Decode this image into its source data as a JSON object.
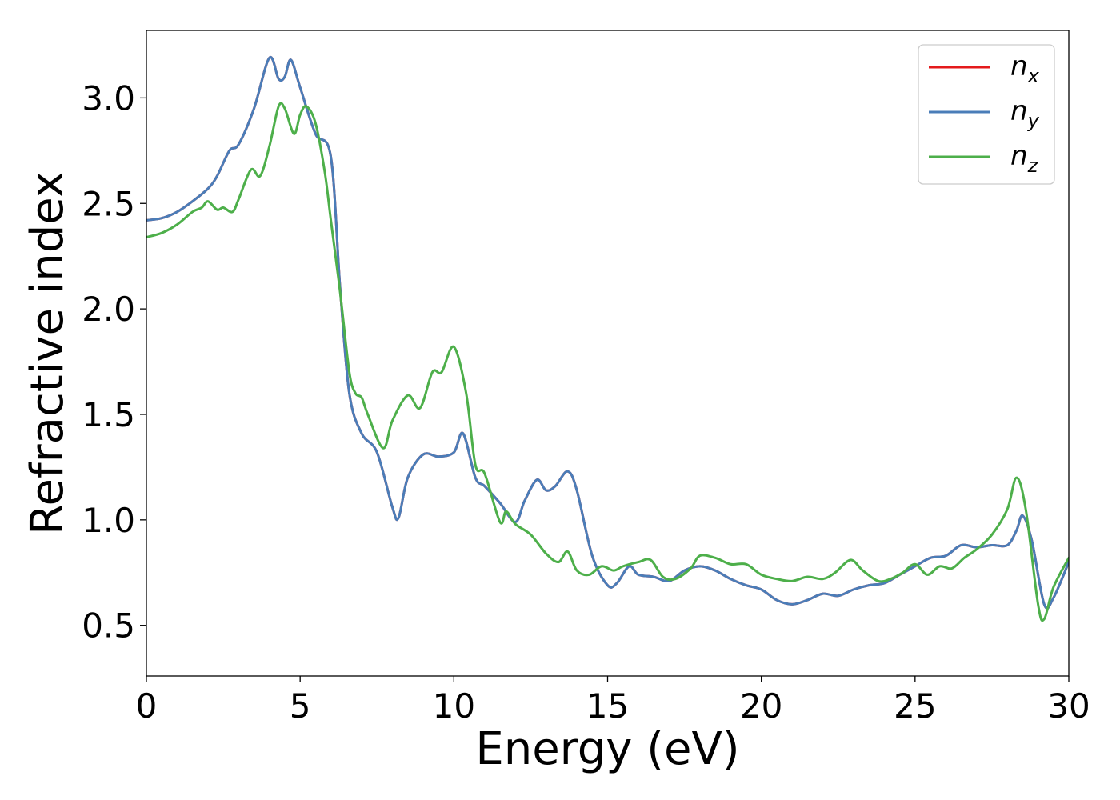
{
  "chart_data": {
    "type": "line",
    "xlabel": "Energy (eV)",
    "ylabel": "Refractive index",
    "xlim": [
      0,
      30
    ],
    "ylim": [
      0.26,
      3.32
    ],
    "xticks": [
      0,
      5,
      10,
      15,
      20,
      25,
      30
    ],
    "xtick_labels": [
      "0",
      "5",
      "10",
      "15",
      "20",
      "25",
      "30"
    ],
    "yticks": [
      0.5,
      1.0,
      1.5,
      2.0,
      2.5,
      3.0
    ],
    "ytick_labels": [
      "0.5",
      "1.0",
      "1.5",
      "2.0",
      "2.5",
      "3.0"
    ],
    "grid": false,
    "legend_position": "top-right",
    "series": [
      {
        "name": "n_x",
        "label_base": "n",
        "label_sub": "x",
        "color": "#e41a1c",
        "x": [
          0,
          0.5,
          1,
          1.5,
          2,
          2.3,
          2.7,
          3,
          3.5,
          4,
          4.3,
          4.5,
          4.7,
          5,
          5.5,
          6,
          6.3,
          6.6,
          7,
          7.5,
          8,
          8.2,
          8.5,
          9,
          9.5,
          10,
          10.3,
          10.7,
          11,
          11.5,
          12,
          12.3,
          12.7,
          13,
          13.3,
          13.7,
          14,
          14.5,
          15,
          15.3,
          15.7,
          16,
          16.5,
          17,
          17.5,
          18,
          18.5,
          19,
          19.5,
          20,
          20.5,
          21,
          21.5,
          22,
          22.5,
          23,
          23.5,
          24,
          24.5,
          25,
          25.5,
          26,
          26.5,
          27,
          27.5,
          28,
          28.3,
          28.5,
          28.8,
          29.2,
          29.5,
          30
        ],
        "y": [
          2.42,
          2.43,
          2.46,
          2.51,
          2.57,
          2.63,
          2.75,
          2.78,
          2.95,
          3.19,
          3.09,
          3.1,
          3.18,
          3.05,
          2.83,
          2.72,
          2.1,
          1.6,
          1.41,
          1.32,
          1.06,
          1.01,
          1.2,
          1.31,
          1.3,
          1.32,
          1.41,
          1.2,
          1.16,
          1.08,
          0.99,
          1.09,
          1.19,
          1.14,
          1.16,
          1.23,
          1.14,
          0.83,
          0.69,
          0.7,
          0.78,
          0.74,
          0.73,
          0.71,
          0.76,
          0.78,
          0.76,
          0.72,
          0.69,
          0.67,
          0.62,
          0.6,
          0.62,
          0.65,
          0.64,
          0.67,
          0.69,
          0.7,
          0.74,
          0.78,
          0.82,
          0.83,
          0.88,
          0.87,
          0.88,
          0.88,
          0.95,
          1.02,
          0.9,
          0.6,
          0.63,
          0.8
        ]
      },
      {
        "name": "n_y",
        "label_base": "n",
        "label_sub": "y",
        "color": "#4a7db8",
        "x": [
          0,
          0.5,
          1,
          1.5,
          2,
          2.3,
          2.7,
          3,
          3.5,
          4,
          4.3,
          4.5,
          4.7,
          5,
          5.5,
          6,
          6.3,
          6.6,
          7,
          7.5,
          8,
          8.2,
          8.5,
          9,
          9.5,
          10,
          10.3,
          10.7,
          11,
          11.5,
          12,
          12.3,
          12.7,
          13,
          13.3,
          13.7,
          14,
          14.5,
          15,
          15.3,
          15.7,
          16,
          16.5,
          17,
          17.5,
          18,
          18.5,
          19,
          19.5,
          20,
          20.5,
          21,
          21.5,
          22,
          22.5,
          23,
          23.5,
          24,
          24.5,
          25,
          25.5,
          26,
          26.5,
          27,
          27.5,
          28,
          28.3,
          28.5,
          28.8,
          29.2,
          29.5,
          30
        ],
        "y": [
          2.42,
          2.43,
          2.46,
          2.51,
          2.57,
          2.63,
          2.75,
          2.78,
          2.95,
          3.19,
          3.09,
          3.1,
          3.18,
          3.05,
          2.83,
          2.72,
          2.1,
          1.6,
          1.41,
          1.32,
          1.06,
          1.01,
          1.2,
          1.31,
          1.3,
          1.32,
          1.41,
          1.2,
          1.16,
          1.08,
          0.99,
          1.09,
          1.19,
          1.14,
          1.16,
          1.23,
          1.14,
          0.83,
          0.69,
          0.7,
          0.78,
          0.74,
          0.73,
          0.71,
          0.76,
          0.78,
          0.76,
          0.72,
          0.69,
          0.67,
          0.62,
          0.6,
          0.62,
          0.65,
          0.64,
          0.67,
          0.69,
          0.7,
          0.74,
          0.78,
          0.82,
          0.83,
          0.88,
          0.87,
          0.88,
          0.88,
          0.95,
          1.02,
          0.9,
          0.6,
          0.63,
          0.8
        ]
      },
      {
        "name": "n_z",
        "label_base": "n",
        "label_sub": "z",
        "color": "#4daf4a",
        "x": [
          0,
          0.5,
          1,
          1.5,
          1.8,
          2,
          2.3,
          2.5,
          2.8,
          3,
          3.4,
          3.7,
          4,
          4.3,
          4.5,
          4.8,
          5,
          5.2,
          5.5,
          5.8,
          6,
          6.3,
          6.6,
          6.8,
          7,
          7.2,
          7.7,
          8,
          8.5,
          8.9,
          9.3,
          9.6,
          10,
          10.4,
          10.7,
          11,
          11.5,
          11.7,
          12,
          12.5,
          13,
          13.4,
          13.7,
          14,
          14.4,
          14.8,
          15.2,
          15.5,
          16,
          16.4,
          16.8,
          17.2,
          17.7,
          18,
          18.5,
          19,
          19.5,
          20,
          20.5,
          21,
          21.5,
          22,
          22.4,
          22.9,
          23.3,
          23.8,
          24.2,
          24.6,
          25,
          25.4,
          25.8,
          26.2,
          26.6,
          27,
          27.5,
          28,
          28.3,
          28.6,
          29,
          29.2,
          29.5,
          30
        ],
        "y": [
          2.34,
          2.36,
          2.4,
          2.46,
          2.48,
          2.51,
          2.47,
          2.48,
          2.46,
          2.52,
          2.66,
          2.63,
          2.77,
          2.96,
          2.95,
          2.83,
          2.92,
          2.96,
          2.88,
          2.65,
          2.42,
          2.08,
          1.7,
          1.6,
          1.58,
          1.5,
          1.34,
          1.47,
          1.59,
          1.53,
          1.7,
          1.7,
          1.82,
          1.6,
          1.26,
          1.22,
          0.99,
          1.04,
          0.98,
          0.93,
          0.84,
          0.8,
          0.85,
          0.76,
          0.74,
          0.78,
          0.76,
          0.78,
          0.8,
          0.81,
          0.73,
          0.72,
          0.77,
          0.83,
          0.82,
          0.79,
          0.79,
          0.74,
          0.72,
          0.71,
          0.73,
          0.72,
          0.75,
          0.81,
          0.76,
          0.71,
          0.72,
          0.75,
          0.79,
          0.74,
          0.78,
          0.77,
          0.82,
          0.86,
          0.93,
          1.05,
          1.2,
          1.05,
          0.6,
          0.53,
          0.68,
          0.82
        ]
      }
    ]
  }
}
